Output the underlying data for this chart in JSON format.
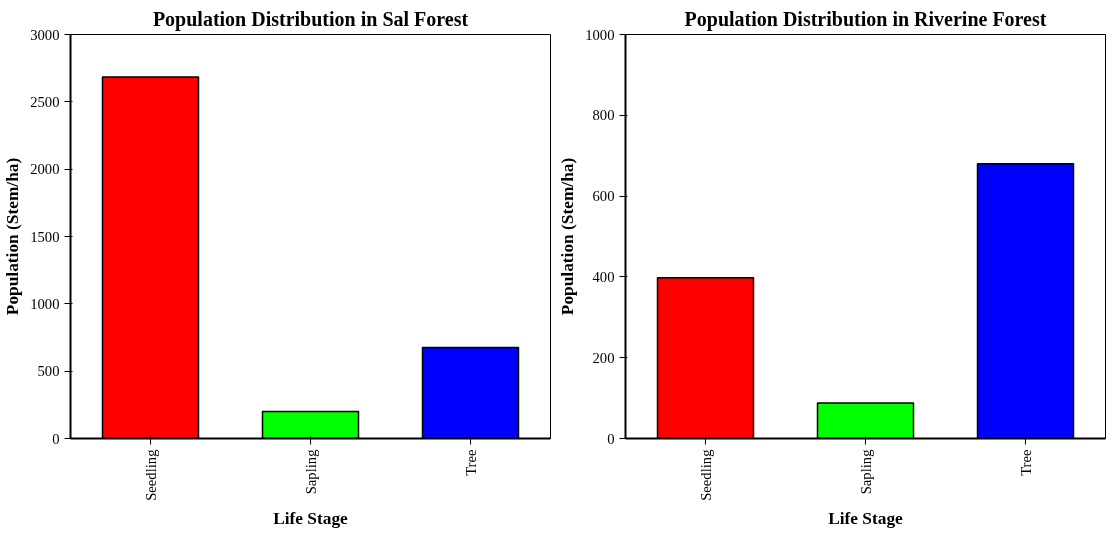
{
  "chart_data": [
    {
      "type": "bar",
      "title": "Population Distribution in Sal Forest",
      "xlabel": "Life Stage",
      "ylabel": "Population (Stem/ha)",
      "categories": [
        "Seedling",
        "Sapling",
        "Tree"
      ],
      "values": [
        2685,
        200,
        675
      ],
      "colors": [
        "#ff0000",
        "#00ff00",
        "#0000ff"
      ],
      "ylim": [
        0,
        3000
      ],
      "yticks": [
        0,
        500,
        1000,
        1500,
        2000,
        2500,
        3000
      ],
      "grid": false
    },
    {
      "type": "bar",
      "title": "Population Distribution in Riverine Forest",
      "xlabel": "Life Stage",
      "ylabel": "Population (Stem/ha)",
      "categories": [
        "Seedling",
        "Sapling",
        "Tree"
      ],
      "values": [
        398,
        88,
        680
      ],
      "colors": [
        "#ff0000",
        "#00ff00",
        "#0000ff"
      ],
      "ylim": [
        0,
        1000
      ],
      "yticks": [
        0,
        200,
        400,
        600,
        800,
        1000
      ],
      "grid": false
    }
  ]
}
